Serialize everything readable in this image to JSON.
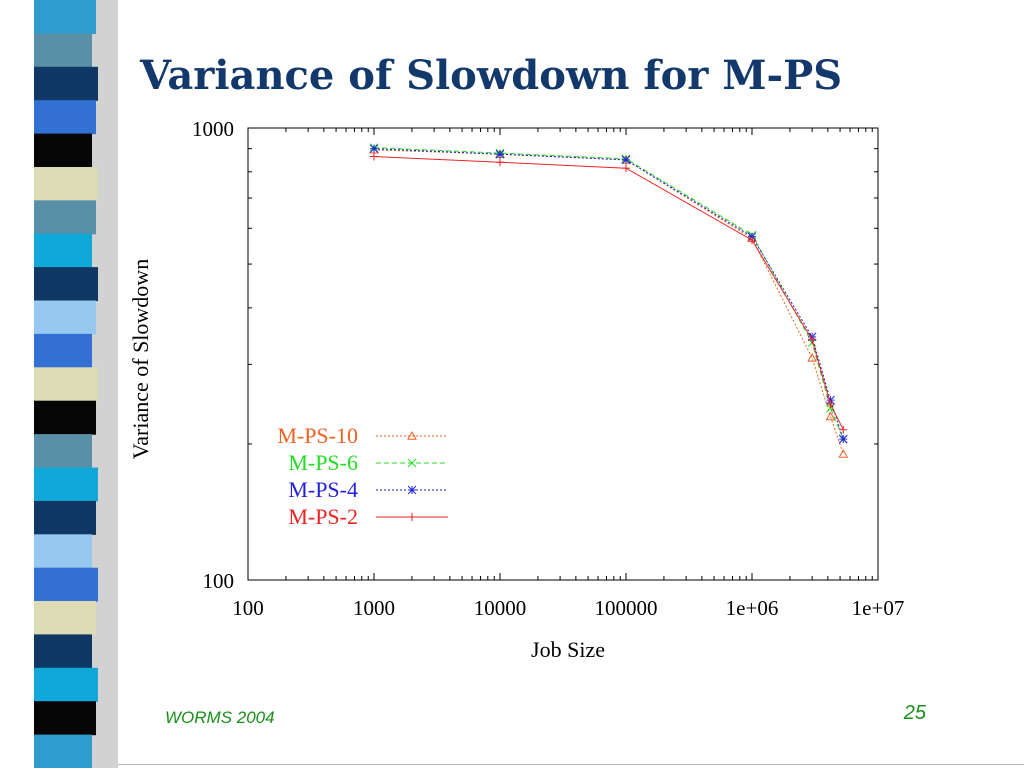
{
  "slide": {
    "title": "Variance of Slowdown for M-PS",
    "footer_left": "WORMS 2004",
    "page_number": "25"
  },
  "decoration": {
    "stripe_colors": [
      "#2e9ccc",
      "#5a8fa8",
      "#103864",
      "#3370d4",
      "#060606",
      "#dcdcb4",
      "#5a8fa8",
      "#10a8d8",
      "#103864",
      "#96c8f0",
      "#3370d4",
      "#dcdcb4",
      "#060606",
      "#5a8fa8",
      "#10a8d8",
      "#103864",
      "#96c8f0",
      "#3370d4",
      "#dcdcb4",
      "#103864",
      "#10a8d8",
      "#060606",
      "#2e9ccc"
    ]
  },
  "chart_data": {
    "type": "line",
    "xlabel": "Job Size",
    "ylabel": "Variance of Slowdown",
    "x_scale": "log",
    "y_scale": "log",
    "xlim": [
      100,
      10000000
    ],
    "ylim": [
      100,
      1000
    ],
    "x_ticks": [
      "100",
      "1000",
      "10000",
      "100000",
      "1e+06",
      "1e+07"
    ],
    "y_ticks": [
      "100",
      "1000"
    ],
    "grid": false,
    "legend_position": "bottom-left",
    "series": [
      {
        "name": "M-PS-10",
        "color": "#f06020",
        "dash": "dotted",
        "marker": "triangle",
        "x": [
          1000,
          10000,
          100000,
          1000000,
          3000000,
          4200000,
          5300000
        ],
        "y": [
          895,
          875,
          850,
          570,
          310,
          230,
          190
        ]
      },
      {
        "name": "M-PS-6",
        "color": "#22dd22",
        "dash": "dashed",
        "marker": "x",
        "x": [
          1000,
          10000,
          100000,
          1000000,
          3000000,
          4200000,
          5300000
        ],
        "y": [
          905,
          880,
          855,
          580,
          335,
          240,
          205
        ]
      },
      {
        "name": "M-PS-4",
        "color": "#2222dd",
        "dash": "dotted",
        "marker": "asterisk",
        "x": [
          1000,
          10000,
          100000,
          1000000,
          3000000,
          4200000,
          5300000
        ],
        "y": [
          900,
          875,
          850,
          575,
          345,
          250,
          205
        ]
      },
      {
        "name": "M-PS-2",
        "color": "#ee2222",
        "dash": "solid",
        "marker": "plus",
        "x": [
          1000,
          10000,
          100000,
          1000000,
          3000000,
          4200000,
          5300000
        ],
        "y": [
          865,
          840,
          815,
          565,
          340,
          245,
          215
        ]
      }
    ]
  }
}
